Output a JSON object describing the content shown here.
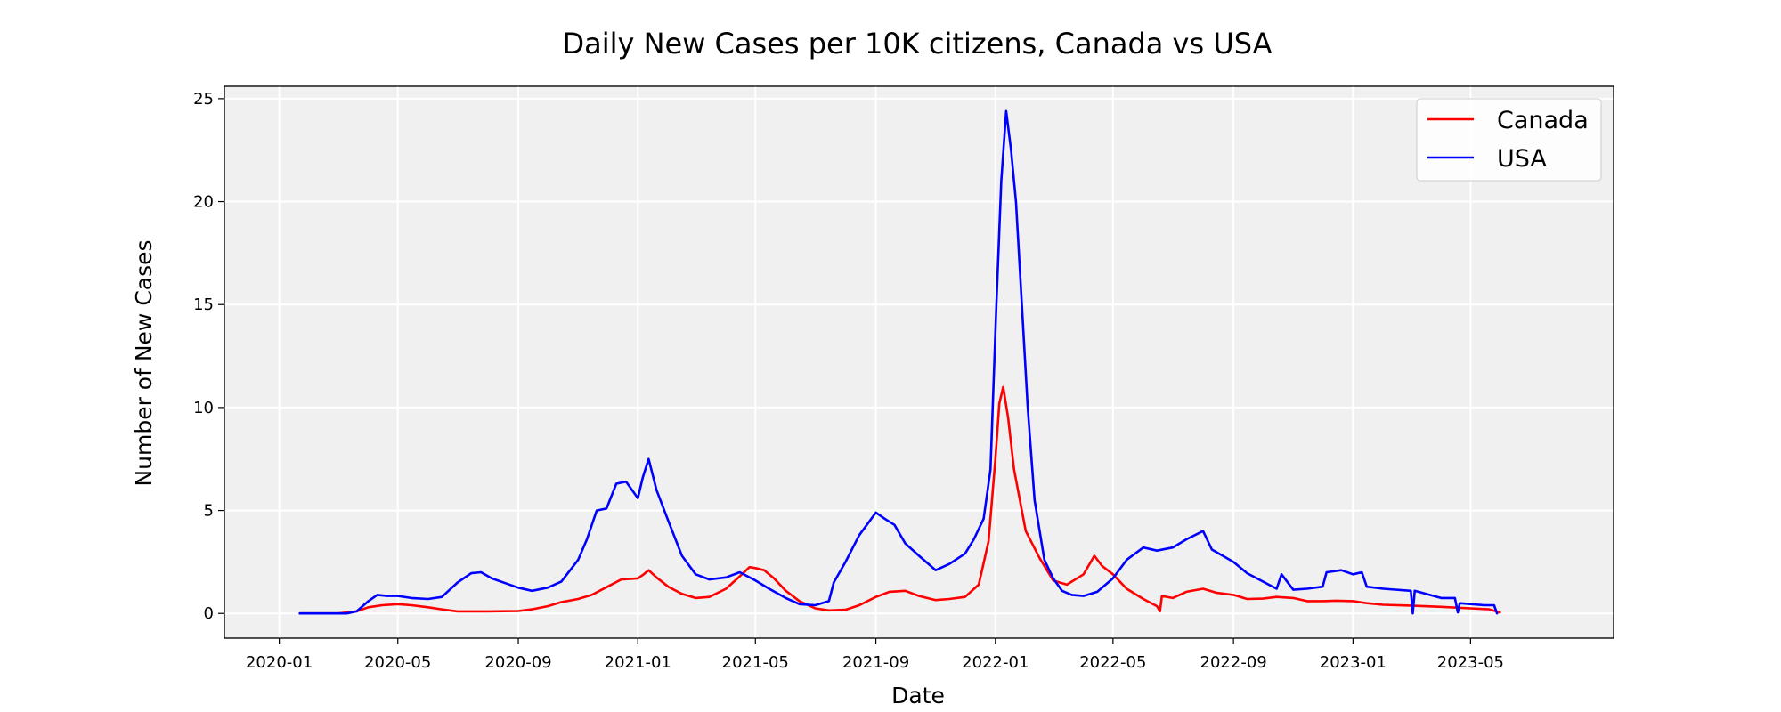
{
  "chart_data": {
    "type": "line",
    "title": "Daily New Cases per 10K citizens, Canada vs USA",
    "xlabel": "Date",
    "ylabel": "Number of New Cases",
    "x_type": "date",
    "xlim": [
      "2019-11-06",
      "2023-09-24"
    ],
    "ylim": [
      -1.2,
      25.6
    ],
    "x_ticks": [
      "2020-01",
      "2020-05",
      "2020-09",
      "2021-01",
      "2021-05",
      "2021-09",
      "2022-01",
      "2022-05",
      "2022-09",
      "2023-01",
      "2023-05"
    ],
    "y_ticks": [
      0,
      5,
      10,
      15,
      20,
      25
    ],
    "grid": true,
    "legend_position": "top-right",
    "plot_background": "#f0f0f0",
    "series": [
      {
        "name": "Canada",
        "color": "#ff0000",
        "points": [
          [
            "2020-01-22",
            0
          ],
          [
            "2020-03-01",
            0
          ],
          [
            "2020-03-20",
            0.1
          ],
          [
            "2020-04-01",
            0.3
          ],
          [
            "2020-04-15",
            0.4
          ],
          [
            "2020-05-01",
            0.45
          ],
          [
            "2020-05-15",
            0.4
          ],
          [
            "2020-06-01",
            0.3
          ],
          [
            "2020-06-15",
            0.2
          ],
          [
            "2020-07-01",
            0.1
          ],
          [
            "2020-08-01",
            0.1
          ],
          [
            "2020-09-01",
            0.12
          ],
          [
            "2020-09-15",
            0.2
          ],
          [
            "2020-10-01",
            0.35
          ],
          [
            "2020-10-15",
            0.55
          ],
          [
            "2020-11-01",
            0.7
          ],
          [
            "2020-11-15",
            0.9
          ],
          [
            "2020-12-01",
            1.3
          ],
          [
            "2020-12-15",
            1.65
          ],
          [
            "2021-01-01",
            1.7
          ],
          [
            "2021-01-07",
            1.9
          ],
          [
            "2021-01-12",
            2.1
          ],
          [
            "2021-01-20",
            1.75
          ],
          [
            "2021-02-01",
            1.3
          ],
          [
            "2021-02-15",
            0.95
          ],
          [
            "2021-03-01",
            0.75
          ],
          [
            "2021-03-15",
            0.8
          ],
          [
            "2021-04-01",
            1.2
          ],
          [
            "2021-04-15",
            1.8
          ],
          [
            "2021-04-25",
            2.25
          ],
          [
            "2021-05-01",
            2.2
          ],
          [
            "2021-05-10",
            2.1
          ],
          [
            "2021-05-20",
            1.7
          ],
          [
            "2021-06-01",
            1.1
          ],
          [
            "2021-06-15",
            0.6
          ],
          [
            "2021-07-01",
            0.25
          ],
          [
            "2021-07-15",
            0.15
          ],
          [
            "2021-08-01",
            0.18
          ],
          [
            "2021-08-15",
            0.4
          ],
          [
            "2021-09-01",
            0.8
          ],
          [
            "2021-09-15",
            1.05
          ],
          [
            "2021-10-01",
            1.1
          ],
          [
            "2021-10-15",
            0.85
          ],
          [
            "2021-11-01",
            0.65
          ],
          [
            "2021-11-15",
            0.7
          ],
          [
            "2021-12-01",
            0.8
          ],
          [
            "2021-12-15",
            1.4
          ],
          [
            "2021-12-25",
            3.5
          ],
          [
            "2022-01-01",
            7.5
          ],
          [
            "2022-01-05",
            10.2
          ],
          [
            "2022-01-09",
            11.0
          ],
          [
            "2022-01-14",
            9.5
          ],
          [
            "2022-01-20",
            7.0
          ],
          [
            "2022-02-01",
            4.0
          ],
          [
            "2022-02-15",
            2.7
          ],
          [
            "2022-03-01",
            1.6
          ],
          [
            "2022-03-15",
            1.4
          ],
          [
            "2022-04-01",
            1.9
          ],
          [
            "2022-04-12",
            2.8
          ],
          [
            "2022-04-20",
            2.3
          ],
          [
            "2022-05-01",
            1.9
          ],
          [
            "2022-05-15",
            1.2
          ],
          [
            "2022-06-01",
            0.7
          ],
          [
            "2022-06-15",
            0.35
          ],
          [
            "2022-06-18",
            0.1
          ],
          [
            "2022-06-20",
            0.85
          ],
          [
            "2022-07-01",
            0.75
          ],
          [
            "2022-07-15",
            1.05
          ],
          [
            "2022-08-01",
            1.2
          ],
          [
            "2022-08-15",
            1.0
          ],
          [
            "2022-09-01",
            0.9
          ],
          [
            "2022-09-15",
            0.7
          ],
          [
            "2022-10-01",
            0.72
          ],
          [
            "2022-10-15",
            0.8
          ],
          [
            "2022-11-01",
            0.75
          ],
          [
            "2022-11-15",
            0.6
          ],
          [
            "2022-12-01",
            0.6
          ],
          [
            "2022-12-15",
            0.62
          ],
          [
            "2023-01-01",
            0.6
          ],
          [
            "2023-01-15",
            0.5
          ],
          [
            "2023-02-01",
            0.42
          ],
          [
            "2023-03-01",
            0.38
          ],
          [
            "2023-04-01",
            0.32
          ],
          [
            "2023-05-01",
            0.25
          ],
          [
            "2023-05-20",
            0.2
          ],
          [
            "2023-05-31",
            0.05
          ]
        ]
      },
      {
        "name": "USA",
        "color": "#0000ff",
        "points": [
          [
            "2020-01-22",
            0
          ],
          [
            "2020-03-10",
            0
          ],
          [
            "2020-03-20",
            0.1
          ],
          [
            "2020-04-01",
            0.6
          ],
          [
            "2020-04-10",
            0.9
          ],
          [
            "2020-04-20",
            0.85
          ],
          [
            "2020-05-01",
            0.85
          ],
          [
            "2020-05-15",
            0.75
          ],
          [
            "2020-06-01",
            0.7
          ],
          [
            "2020-06-15",
            0.8
          ],
          [
            "2020-07-01",
            1.5
          ],
          [
            "2020-07-15",
            1.95
          ],
          [
            "2020-07-25",
            2.0
          ],
          [
            "2020-08-05",
            1.7
          ],
          [
            "2020-08-20",
            1.45
          ],
          [
            "2020-09-01",
            1.25
          ],
          [
            "2020-09-15",
            1.1
          ],
          [
            "2020-10-01",
            1.25
          ],
          [
            "2020-10-15",
            1.55
          ],
          [
            "2020-11-01",
            2.6
          ],
          [
            "2020-11-10",
            3.6
          ],
          [
            "2020-11-20",
            5.0
          ],
          [
            "2020-11-30",
            5.1
          ],
          [
            "2020-12-10",
            6.3
          ],
          [
            "2020-12-20",
            6.4
          ],
          [
            "2021-01-01",
            5.6
          ],
          [
            "2021-01-06",
            6.6
          ],
          [
            "2021-01-12",
            7.5
          ],
          [
            "2021-01-20",
            6.0
          ],
          [
            "2021-02-01",
            4.5
          ],
          [
            "2021-02-15",
            2.8
          ],
          [
            "2021-03-01",
            1.9
          ],
          [
            "2021-03-15",
            1.65
          ],
          [
            "2021-04-01",
            1.75
          ],
          [
            "2021-04-15",
            2.0
          ],
          [
            "2021-05-01",
            1.6
          ],
          [
            "2021-05-15",
            1.2
          ],
          [
            "2021-06-01",
            0.75
          ],
          [
            "2021-06-15",
            0.45
          ],
          [
            "2021-07-01",
            0.4
          ],
          [
            "2021-07-15",
            0.6
          ],
          [
            "2021-07-20",
            1.5
          ],
          [
            "2021-08-01",
            2.5
          ],
          [
            "2021-08-15",
            3.8
          ],
          [
            "2021-09-01",
            4.9
          ],
          [
            "2021-09-10",
            4.6
          ],
          [
            "2021-09-20",
            4.3
          ],
          [
            "2021-10-01",
            3.4
          ],
          [
            "2021-10-15",
            2.8
          ],
          [
            "2021-11-01",
            2.1
          ],
          [
            "2021-11-15",
            2.4
          ],
          [
            "2021-12-01",
            2.9
          ],
          [
            "2021-12-10",
            3.6
          ],
          [
            "2021-12-20",
            4.6
          ],
          [
            "2021-12-27",
            7.0
          ],
          [
            "2022-01-02",
            15.0
          ],
          [
            "2022-01-07",
            21.0
          ],
          [
            "2022-01-12",
            24.4
          ],
          [
            "2022-01-17",
            22.5
          ],
          [
            "2022-01-22",
            20.0
          ],
          [
            "2022-01-28",
            15.0
          ],
          [
            "2022-02-03",
            10.0
          ],
          [
            "2022-02-10",
            5.5
          ],
          [
            "2022-02-20",
            2.6
          ],
          [
            "2022-03-01",
            1.7
          ],
          [
            "2022-03-10",
            1.1
          ],
          [
            "2022-03-20",
            0.9
          ],
          [
            "2022-04-01",
            0.85
          ],
          [
            "2022-04-15",
            1.05
          ],
          [
            "2022-05-01",
            1.7
          ],
          [
            "2022-05-15",
            2.6
          ],
          [
            "2022-06-01",
            3.2
          ],
          [
            "2022-06-15",
            3.05
          ],
          [
            "2022-07-01",
            3.2
          ],
          [
            "2022-07-15",
            3.6
          ],
          [
            "2022-08-01",
            4.0
          ],
          [
            "2022-08-10",
            3.1
          ],
          [
            "2022-09-01",
            2.5
          ],
          [
            "2022-09-15",
            1.95
          ],
          [
            "2022-10-01",
            1.55
          ],
          [
            "2022-10-15",
            1.2
          ],
          [
            "2022-10-20",
            1.9
          ],
          [
            "2022-11-01",
            1.15
          ],
          [
            "2022-11-15",
            1.2
          ],
          [
            "2022-12-01",
            1.3
          ],
          [
            "2022-12-05",
            2.0
          ],
          [
            "2022-12-20",
            2.1
          ],
          [
            "2023-01-01",
            1.9
          ],
          [
            "2023-01-10",
            2.0
          ],
          [
            "2023-01-15",
            1.3
          ],
          [
            "2023-02-01",
            1.2
          ],
          [
            "2023-03-01",
            1.1
          ],
          [
            "2023-03-03",
            0.0
          ],
          [
            "2023-03-05",
            1.1
          ],
          [
            "2023-04-01",
            0.75
          ],
          [
            "2023-04-15",
            0.75
          ],
          [
            "2023-04-18",
            0.05
          ],
          [
            "2023-04-20",
            0.5
          ],
          [
            "2023-05-15",
            0.4
          ],
          [
            "2023-05-25",
            0.4
          ],
          [
            "2023-05-28",
            0.0
          ]
        ]
      }
    ]
  }
}
